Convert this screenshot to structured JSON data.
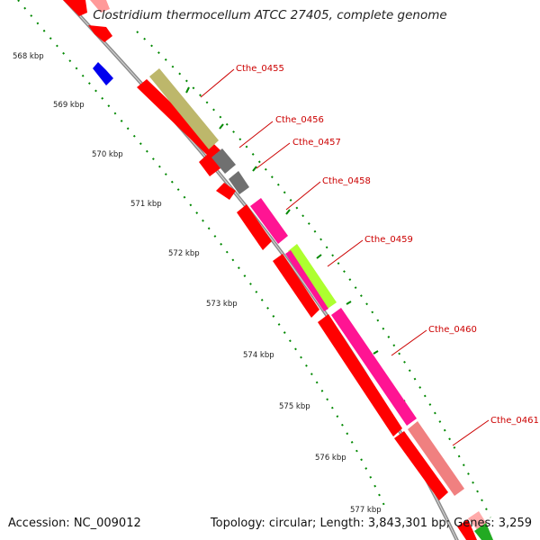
{
  "title": "Clostridium thermocellum ATCC 27405, complete genome",
  "accession": "Accession: NC_009012",
  "topology": "Topology: circular; Length: 3,843,301 bp; Genes: 3,259",
  "tick_labels": [
    "568 kbp",
    "569 kbp",
    "570 kbp",
    "571 kbp",
    "572 kbp",
    "573 kbp",
    "574 kbp",
    "575 kbp",
    "576 kbp",
    "577 kbp"
  ],
  "gene_labels": [
    "Cthe_0455",
    "Cthe_0456",
    "Cthe_0457",
    "Cthe_0458",
    "Cthe_0459",
    "Cthe_0460",
    "Cthe_0461"
  ],
  "colors": {
    "backbone": "#8c8c8c",
    "cds": "#ff0000",
    "tick": "#008800",
    "label": "#cc0000",
    "olive": "#bdb76b",
    "gray": "#707070",
    "magenta": "#ff1493",
    "lime": "#adff2f",
    "salmon": "#f08080",
    "blue": "#0000ee",
    "green": "#22aa22"
  }
}
